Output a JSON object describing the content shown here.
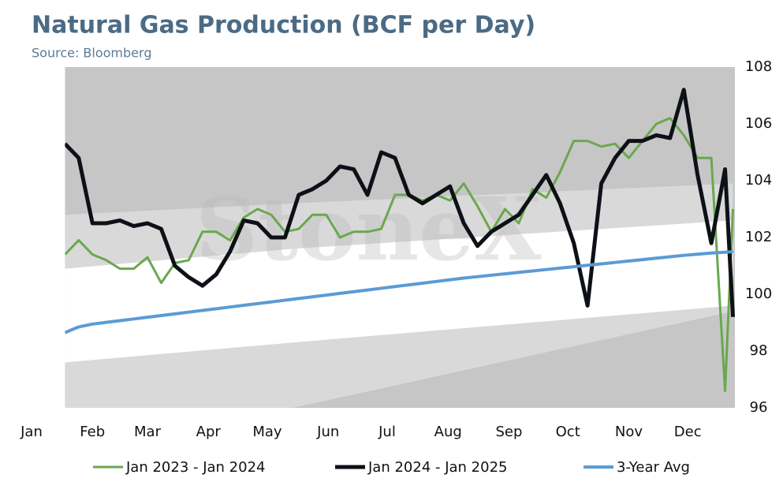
{
  "chart_data": {
    "type": "line",
    "title": "Natural Gas Production (BCF per Day)",
    "subtitle": "Source: Bloomberg",
    "watermark": "StoneX",
    "background_color": "#c6c6c6",
    "xlim": [
      0,
      358
    ],
    "xticks": [
      {
        "value": 0,
        "label": "Jan"
      },
      {
        "value": 31,
        "label": "Feb"
      },
      {
        "value": 59,
        "label": "Mar"
      },
      {
        "value": 90,
        "label": "Apr"
      },
      {
        "value": 120,
        "label": "May"
      },
      {
        "value": 151,
        "label": "Jun"
      },
      {
        "value": 181,
        "label": "Jul"
      },
      {
        "value": 212,
        "label": "Aug"
      },
      {
        "value": 243,
        "label": "Sep"
      },
      {
        "value": 273,
        "label": "Oct"
      },
      {
        "value": 304,
        "label": "Nov"
      },
      {
        "value": 334,
        "label": "Dec"
      }
    ],
    "ylim": [
      96,
      108
    ],
    "yticks": [
      96,
      98,
      100,
      102,
      104,
      106,
      108
    ],
    "bands": [
      {
        "color": "#d9d9d9",
        "x": [
          17,
          133,
          357
        ],
        "upper": [
          102.8,
          103.2,
          103.9
        ],
        "lower": [
          95.4,
          96.0,
          99.4
        ]
      },
      {
        "color": "#ffffff",
        "x": [
          17,
          133,
          357
        ],
        "upper": [
          100.9,
          101.6,
          102.6
        ],
        "lower": [
          97.6,
          98.3,
          99.6
        ]
      }
    ],
    "x": [
      17,
      24,
      31,
      38,
      45,
      52,
      59,
      66,
      73,
      80,
      87,
      94,
      101,
      108,
      115,
      122,
      129,
      136,
      143,
      150,
      157,
      164,
      171,
      178,
      185,
      192,
      199,
      206,
      213,
      220,
      227,
      234,
      241,
      248,
      255,
      262,
      269,
      276,
      283,
      290,
      297,
      304,
      311,
      318,
      325,
      332,
      339,
      346,
      353,
      357
    ],
    "series": [
      {
        "name": "Jan 2023 - Jan 2024",
        "color": "#6aa84f",
        "width": 3,
        "values": [
          101.4,
          101.9,
          101.4,
          101.2,
          100.9,
          100.9,
          101.3,
          100.4,
          101.1,
          101.2,
          102.2,
          102.2,
          101.9,
          102.7,
          103.0,
          102.8,
          102.2,
          102.3,
          102.8,
          102.8,
          102.0,
          102.2,
          102.2,
          102.3,
          103.5,
          103.5,
          103.3,
          103.5,
          103.3,
          103.9,
          103.1,
          102.2,
          103.0,
          102.5,
          103.7,
          103.4,
          104.3,
          105.4,
          105.4,
          105.2,
          105.3,
          104.8,
          105.4,
          106.0,
          106.2,
          105.6,
          104.8,
          104.8,
          96.6,
          103.0
        ]
      },
      {
        "name": "Jan 2024 - Jan 2025",
        "color": "#0d1117",
        "width": 5,
        "values": [
          105.3,
          104.8,
          102.5,
          102.5,
          102.6,
          102.4,
          102.5,
          102.3,
          101.0,
          100.6,
          100.3,
          100.7,
          101.5,
          102.6,
          102.5,
          102.0,
          102.0,
          103.5,
          103.7,
          104.0,
          104.5,
          104.4,
          103.5,
          105.0,
          104.8,
          103.5,
          103.2,
          103.5,
          103.8,
          102.5,
          101.7,
          102.2,
          102.5,
          102.8,
          103.5,
          104.2,
          103.2,
          101.8,
          99.6,
          103.9,
          104.8,
          105.4,
          105.4,
          105.6,
          105.5,
          107.2,
          104.2,
          101.8,
          104.4,
          99.2
        ]
      },
      {
        "name": "3-Year Avg",
        "color": "#5b9bd5",
        "width": 4,
        "values": [
          98.65,
          98.85,
          98.95,
          99.01,
          99.07,
          99.13,
          99.19,
          99.25,
          99.31,
          99.37,
          99.43,
          99.49,
          99.55,
          99.61,
          99.67,
          99.73,
          99.79,
          99.85,
          99.91,
          99.97,
          100.03,
          100.09,
          100.15,
          100.21,
          100.27,
          100.33,
          100.39,
          100.45,
          100.51,
          100.57,
          100.62,
          100.67,
          100.72,
          100.77,
          100.82,
          100.87,
          100.92,
          100.97,
          101.02,
          101.07,
          101.12,
          101.17,
          101.22,
          101.27,
          101.32,
          101.37,
          101.41,
          101.45,
          101.48,
          101.5
        ]
      }
    ]
  }
}
